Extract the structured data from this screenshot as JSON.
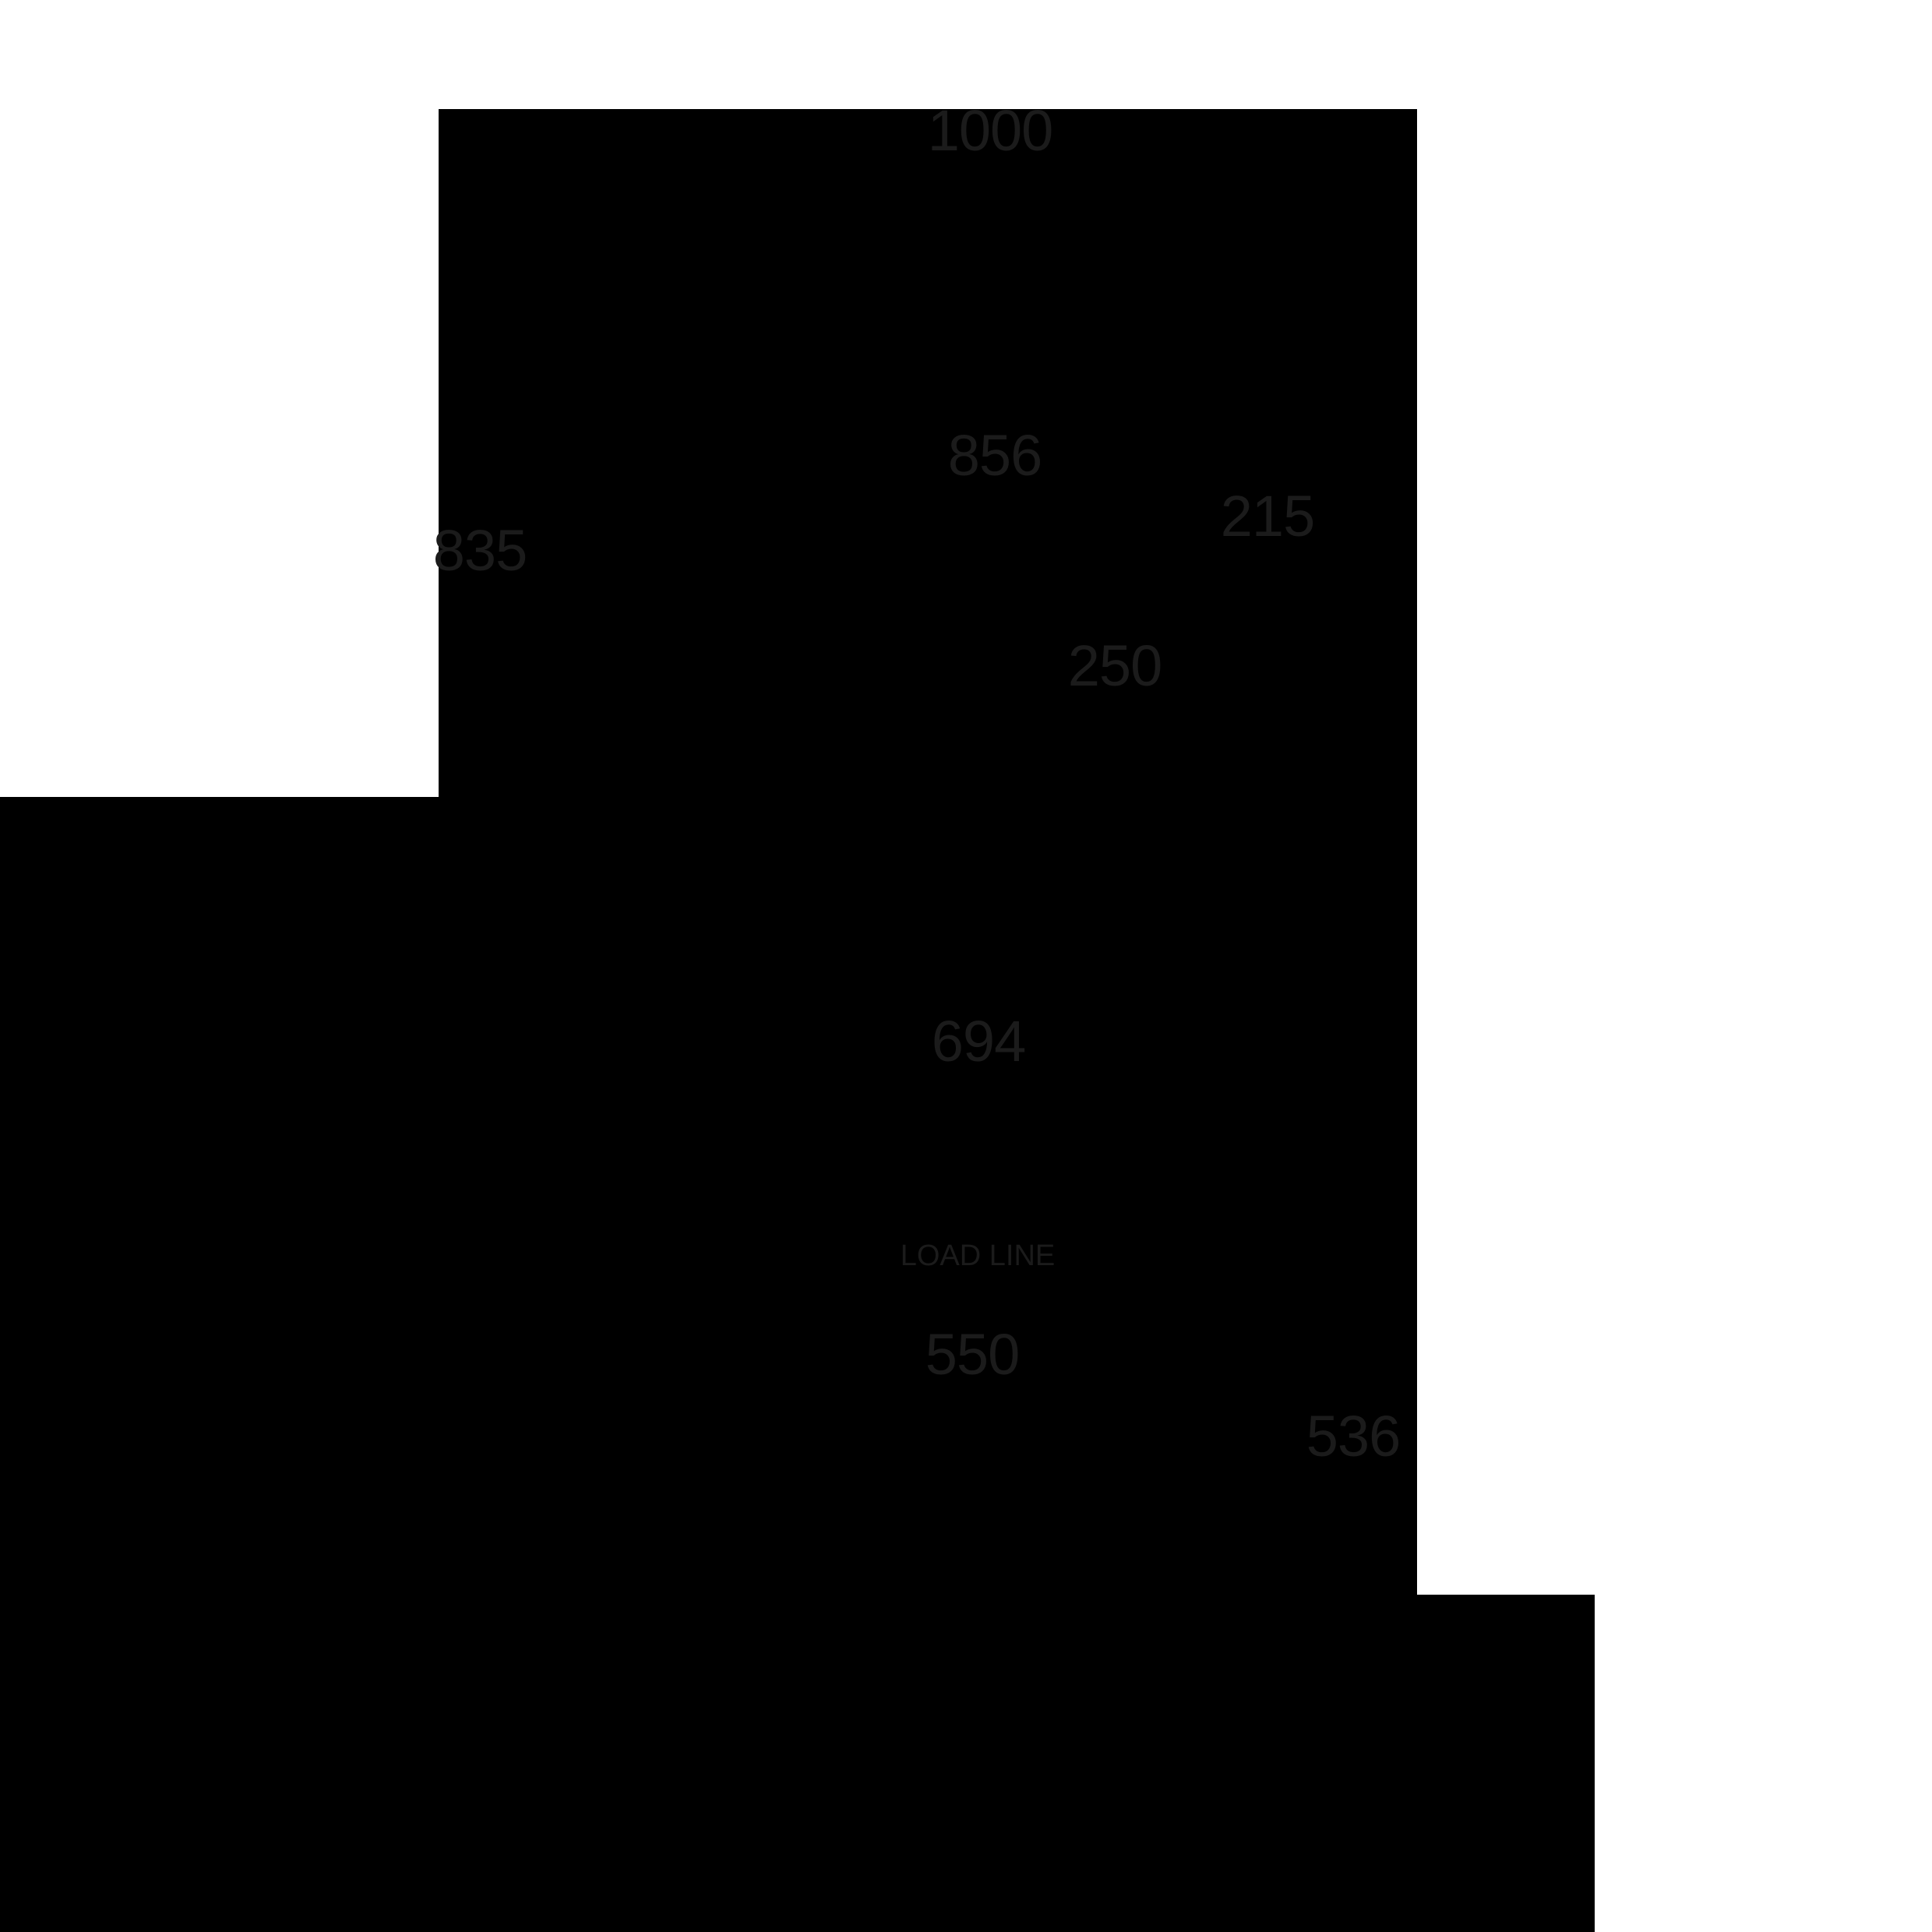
{
  "diagram": {
    "kind": "dimensioned-silhouette-drawing",
    "colors": {
      "background": "#ffffff",
      "silhouette": "#000000",
      "label_text": "#1b1b1b"
    },
    "labels": {
      "dim_1000": "1000",
      "dim_856": "856",
      "dim_215": "215",
      "dim_835": "835",
      "dim_250": "250",
      "dim_694": "694",
      "load_line": "LOAD LINE",
      "dim_550": "550",
      "dim_536": "536"
    }
  }
}
